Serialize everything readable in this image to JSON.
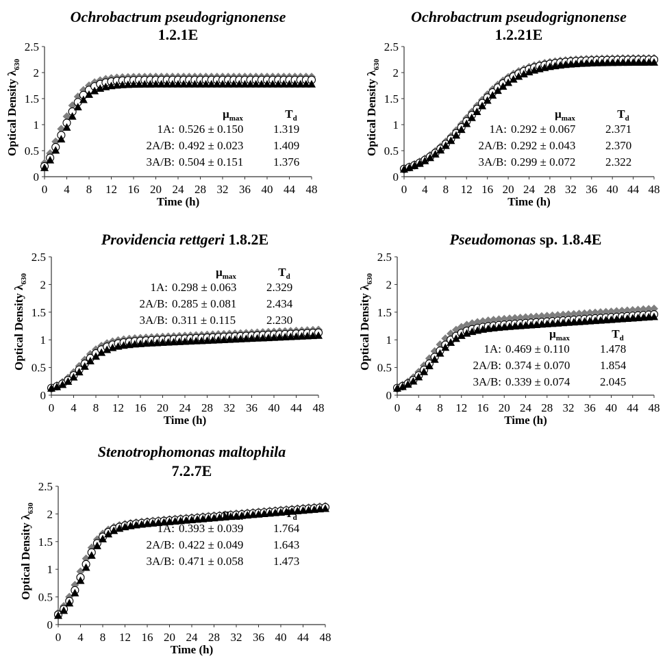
{
  "figure": {
    "time_unit_values": [
      0,
      4,
      8,
      12,
      16,
      20,
      24,
      28,
      32,
      36,
      40,
      44,
      48
    ]
  },
  "chart_data": [
    {
      "type": "scatter",
      "title_italic": "Ochrobactrum pseudogrignonense",
      "title_plain": "",
      "title_line2": "1.2.1E",
      "xlabel": "Time (h)",
      "ylabel": "Optical Density λ",
      "ylabel_sub": "630",
      "xlim": [
        0,
        48
      ],
      "ylim": [
        0,
        2.5
      ],
      "xticks": [
        "0",
        "4",
        "8",
        "12",
        "16",
        "20",
        "24",
        "28",
        "32",
        "36",
        "40",
        "44",
        "48"
      ],
      "yticks": [
        "0",
        "0.5",
        "1",
        "1.5",
        "2",
        "2.5"
      ],
      "curve": {
        "y0": 0.2,
        "plateau": 1.86,
        "rate": 0.47,
        "t_mid": 3.2,
        "diamond_plateau": 1.92,
        "triangle_plateau": 1.78
      },
      "stats": {
        "mu_label": "μ",
        "mu_sub": "max",
        "td_label": "T",
        "td_sub": "d",
        "rows": [
          {
            "name": "1A:",
            "mu": "0.526 ± 0.150",
            "td": "1.319"
          },
          {
            "name": "2A/B:",
            "mu": "0.492 ± 0.023",
            "td": "1.409"
          },
          {
            "name": "3A/B:",
            "mu": "0.504 ± 0.151",
            "td": "1.376"
          }
        ]
      }
    },
    {
      "type": "scatter",
      "title_italic": "Ochrobactrum pseudogrignonense",
      "title_plain": "",
      "title_line2": "1.2.21E",
      "xlabel": "Time (h)",
      "ylabel": "Optical Density λ",
      "ylabel_sub": "630",
      "xlim": [
        0,
        48
      ],
      "ylim": [
        0,
        2.5
      ],
      "xticks": [
        "0",
        "4",
        "8",
        "12",
        "16",
        "20",
        "24",
        "28",
        "32",
        "36",
        "40",
        "44",
        "48"
      ],
      "yticks": [
        "0",
        "0.5",
        "1",
        "1.5",
        "2",
        "2.5"
      ],
      "curve": {
        "y0": 0.15,
        "plateau": 2.25,
        "rate": 0.21,
        "t_mid": 12.5,
        "diamond_plateau": 2.28,
        "triangle_plateau": 2.2
      },
      "stats": {
        "mu_label": "μ",
        "mu_sub": "max",
        "td_label": "T",
        "td_sub": "d",
        "rows": [
          {
            "name": "1A:",
            "mu": "0.292 ± 0.067",
            "td": "2.371"
          },
          {
            "name": "2A/B:",
            "mu": "0.292 ± 0.043",
            "td": "2.370"
          },
          {
            "name": "3A/B:",
            "mu": "0.299 ± 0.072",
            "td": "2.322"
          }
        ]
      }
    },
    {
      "type": "scatter",
      "title_italic": "Providencia rettgeri",
      "title_plain": " 1.8.2E",
      "title_line2": "",
      "xlabel": "Time (h)",
      "ylabel": "Optical Density λ",
      "ylabel_sub": "630",
      "xlim": [
        0,
        48
      ],
      "ylim": [
        0,
        2.5
      ],
      "xticks": [
        "0",
        "4",
        "8",
        "12",
        "16",
        "20",
        "24",
        "28",
        "32",
        "36",
        "40",
        "44",
        "48"
      ],
      "yticks": [
        "0",
        "0.5",
        "1",
        "1.5",
        "2",
        "2.5"
      ],
      "curve": {
        "y0": 0.13,
        "plateau": 0.95,
        "rate": 0.5,
        "t_mid": 5.5,
        "slope_late": 0.0045,
        "diamond_plateau": 1.0,
        "triangle_plateau": 0.9
      },
      "stats": {
        "mu_label": "μ",
        "mu_sub": "max",
        "td_label": "T",
        "td_sub": "d",
        "rows": [
          {
            "name": "1A:",
            "mu": "0.298 ± 0.063",
            "td": "2.329"
          },
          {
            "name": "2A/B:",
            "mu": "0.285 ± 0.081",
            "td": "2.434"
          },
          {
            "name": "3A/B:",
            "mu": "0.311 ± 0.115",
            "td": "2.230"
          }
        ]
      }
    },
    {
      "type": "scatter",
      "title_italic": "Pseudomonas",
      "title_plain": " sp. 1.8.4E",
      "title_line2": "",
      "xlabel": "Time (h)",
      "ylabel": "Optical Density λ",
      "ylabel_sub": "630",
      "xlim": [
        0,
        48
      ],
      "ylim": [
        0,
        2.5
      ],
      "xticks": [
        "0",
        "4",
        "8",
        "12",
        "16",
        "20",
        "24",
        "28",
        "32",
        "36",
        "40",
        "44",
        "48"
      ],
      "yticks": [
        "0",
        "0.5",
        "1",
        "1.5",
        "2",
        "2.5"
      ],
      "curve": {
        "y0": 0.13,
        "plateau": 1.2,
        "rate": 0.42,
        "t_mid": 6.5,
        "slope_late": 0.0065,
        "diamond_plateau": 1.3,
        "triangle_plateau": 1.16
      },
      "stats": {
        "mu_label": "μ",
        "mu_sub": "max",
        "td_label": "T",
        "td_sub": "d",
        "rows": [
          {
            "name": "1A:",
            "mu": "0.469 ± 0.110",
            "td": "1.478"
          },
          {
            "name": "2A/B:",
            "mu": "0.374 ± 0.070",
            "td": "1.854"
          },
          {
            "name": "3A/B:",
            "mu": "0.339 ± 0.074",
            "td": "2.045"
          }
        ]
      }
    },
    {
      "type": "scatter",
      "title_italic": "Stenotrophomonas maltophila",
      "title_plain": "",
      "title_line2": "7.2.7E",
      "xlabel": "Time (h)",
      "ylabel": "Optical Density λ",
      "ylabel_sub": "630",
      "xlim": [
        0,
        48
      ],
      "ylim": [
        0,
        2.5
      ],
      "xticks": [
        "0",
        "4",
        "8",
        "12",
        "16",
        "20",
        "24",
        "28",
        "32",
        "36",
        "40",
        "44",
        "48"
      ],
      "yticks": [
        "0",
        "0.5",
        "1",
        "1.5",
        "2",
        "2.5"
      ],
      "curve": {
        "y0": 0.18,
        "plateau": 1.78,
        "rate": 0.55,
        "t_mid": 4.2,
        "slope_late": 0.0085,
        "diamond_plateau": 1.8,
        "triangle_plateau": 1.76
      },
      "stats": {
        "mu_label": "μ",
        "mu_sub": "max",
        "td_label": "T",
        "td_sub": "d",
        "rows": [
          {
            "name": "1A:",
            "mu": "0.393 ± 0.039",
            "td": "1.764"
          },
          {
            "name": "2A/B:",
            "mu": "0.422 ± 0.049",
            "td": "1.643"
          },
          {
            "name": "3A/B:",
            "mu": "0.471 ± 0.058",
            "td": "1.473"
          }
        ]
      }
    }
  ]
}
